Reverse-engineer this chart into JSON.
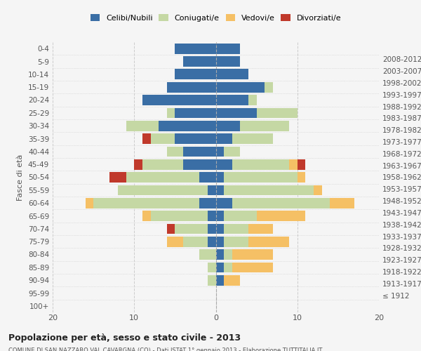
{
  "age_groups": [
    "100+",
    "95-99",
    "90-94",
    "85-89",
    "80-84",
    "75-79",
    "70-74",
    "65-69",
    "60-64",
    "55-59",
    "50-54",
    "45-49",
    "40-44",
    "35-39",
    "30-34",
    "25-29",
    "20-24",
    "15-19",
    "10-14",
    "5-9",
    "0-4"
  ],
  "birth_years": [
    "≤ 1912",
    "1913-1917",
    "1918-1922",
    "1923-1927",
    "1928-1932",
    "1933-1937",
    "1938-1942",
    "1943-1947",
    "1948-1952",
    "1953-1957",
    "1958-1962",
    "1963-1967",
    "1968-1972",
    "1973-1977",
    "1978-1982",
    "1983-1987",
    "1988-1992",
    "1993-1997",
    "1998-2002",
    "2003-2007",
    "2008-2012"
  ],
  "maschi": {
    "celibi": [
      0,
      0,
      0,
      0,
      0,
      1,
      1,
      1,
      2,
      1,
      2,
      4,
      4,
      5,
      7,
      5,
      9,
      6,
      5,
      4,
      5
    ],
    "coniugati": [
      0,
      0,
      1,
      1,
      2,
      3,
      4,
      7,
      13,
      11,
      9,
      5,
      2,
      3,
      4,
      1,
      0,
      0,
      0,
      0,
      0
    ],
    "vedovi": [
      0,
      0,
      0,
      0,
      0,
      2,
      0,
      1,
      1,
      0,
      0,
      0,
      0,
      0,
      0,
      0,
      0,
      0,
      0,
      0,
      0
    ],
    "divorziati": [
      0,
      0,
      0,
      0,
      0,
      0,
      1,
      0,
      0,
      0,
      2,
      1,
      0,
      1,
      0,
      0,
      0,
      0,
      0,
      0,
      0
    ]
  },
  "femmine": {
    "nubili": [
      0,
      0,
      1,
      1,
      1,
      1,
      1,
      1,
      2,
      1,
      1,
      2,
      1,
      2,
      3,
      5,
      4,
      6,
      4,
      3,
      3
    ],
    "coniugate": [
      0,
      0,
      0,
      1,
      1,
      3,
      3,
      4,
      12,
      11,
      9,
      7,
      2,
      5,
      6,
      5,
      1,
      1,
      0,
      0,
      0
    ],
    "vedove": [
      0,
      0,
      2,
      5,
      5,
      5,
      3,
      6,
      3,
      1,
      1,
      1,
      0,
      0,
      0,
      0,
      0,
      0,
      0,
      0,
      0
    ],
    "divorziate": [
      0,
      0,
      0,
      0,
      0,
      0,
      0,
      0,
      0,
      0,
      0,
      1,
      0,
      0,
      0,
      0,
      0,
      0,
      0,
      0,
      0
    ]
  },
  "colors": {
    "celibi": "#3A6EA5",
    "coniugati": "#C5D8A4",
    "vedovi": "#F5C065",
    "divorziati": "#C0392B"
  },
  "xlim": 20,
  "title": "Popolazione per età, sesso e stato civile - 2013",
  "subtitle": "COMUNE DI SAN NAZZARO VAL CAVARGNA (CO) - Dati ISTAT 1° gennaio 2013 - Elaborazione TUTTITALIA.IT",
  "bg_color": "#f5f5f5",
  "grid_color": "#cccccc"
}
